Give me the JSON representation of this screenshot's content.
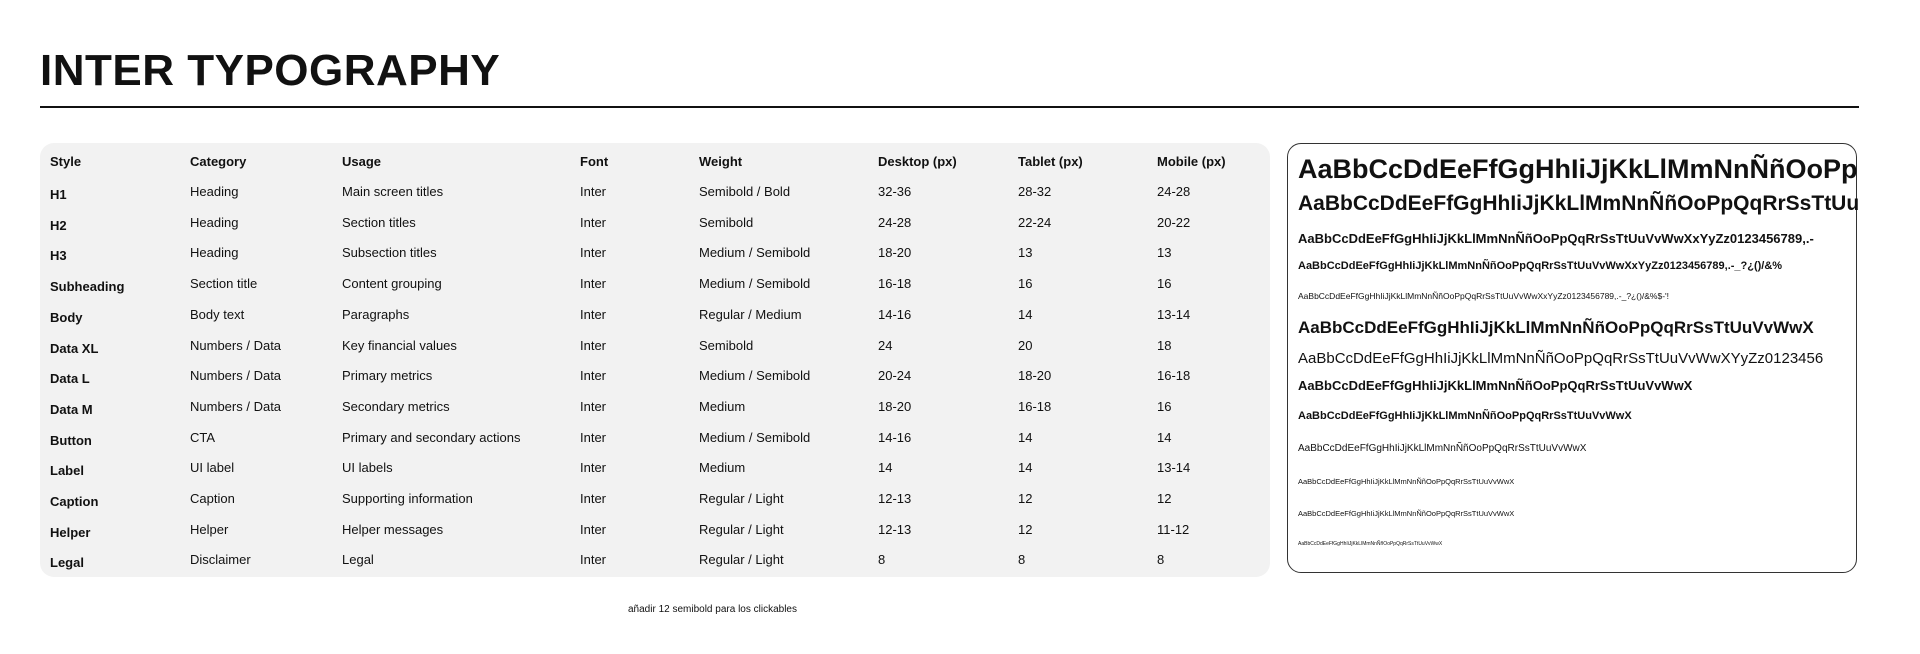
{
  "title": "INTER TYPOGRAPHY",
  "table": {
    "header": [
      "Style",
      "Category",
      "Usage",
      "Font",
      "Weight",
      "Desktop (px)",
      "Tablet (px)",
      "Mobile (px)"
    ],
    "rows": [
      [
        "H1",
        "Heading",
        "Main screen titles",
        "Inter",
        "Semibold / Bold",
        "32-36",
        "28-32",
        "24-28"
      ],
      [
        "H2",
        "Heading",
        "Section titles",
        "Inter",
        "Semibold",
        "24-28",
        "22-24",
        "20-22"
      ],
      [
        "H3",
        "Heading",
        "Subsection titles",
        "Inter",
        "Medium / Semibold",
        "18-20",
        "13",
        "13"
      ],
      [
        "Subheading",
        "Section title",
        "Content grouping",
        "Inter",
        "Medium / Semibold",
        "16-18",
        "16",
        "16"
      ],
      [
        "Body",
        "Body text",
        "Paragraphs",
        "Inter",
        "Regular / Medium",
        "14-16",
        "14",
        "13-14"
      ],
      [
        "Data XL",
        "Numbers / Data",
        "Key financial values",
        "Inter",
        "Semibold",
        "24",
        "20",
        "18"
      ],
      [
        "Data L",
        "Numbers / Data",
        "Primary metrics",
        "Inter",
        "Medium / Semibold",
        "20-24",
        "18-20",
        "16-18"
      ],
      [
        "Data M",
        "Numbers / Data",
        "Secondary metrics",
        "Inter",
        "Medium",
        "18-20",
        "16-18",
        "16"
      ],
      [
        "Button",
        "CTA",
        "Primary and secondary actions",
        "Inter",
        "Medium / Semibold",
        "14-16",
        "14",
        "14"
      ],
      [
        "Label",
        "UI label",
        "UI labels",
        "Inter",
        "Medium",
        "14",
        "14",
        "13-14"
      ],
      [
        "Caption",
        "Caption",
        "Supporting information",
        "Inter",
        "Regular / Light",
        "12-13",
        "12",
        "12"
      ],
      [
        "Helper",
        "Helper",
        "Helper messages",
        "Inter",
        "Regular / Light",
        "12-13",
        "12",
        "11-12"
      ],
      [
        "Legal",
        "Disclaimer",
        "Legal",
        "Inter",
        "Regular / Light",
        "8",
        "8",
        "8"
      ]
    ]
  },
  "specimens": [
    "AaBbCcDdEeFfGgHhIiJjKkLlMmNnÑñOoPp",
    "AaBbCcDdEeFfGgHhIiJjKkLlMmNnÑñOoPpQqRrSsTtUu",
    "AaBbCcDdEeFfGgHhIiJjKkLlMmNnÑñOoPpQqRrSsTtUuVvWwXxYyZz0123456789,.-",
    "AaBbCcDdEeFfGgHhIiJjKkLlMmNnÑñOoPpQqRrSsTtUuVvWwXxYyZz0123456789,.-_?¿()/&%",
    "AaBbCcDdEeFfGgHhIiJjKkLlMmNnÑñOoPpQqRrSsTtUuVvWwXxYyZz0123456789,.-_?¿()/&%$-'!",
    "AaBbCcDdEeFfGgHhIiJjKkLlMmNnÑñOoPpQqRrSsTtUuVvWwX",
    "AaBbCcDdEeFfGgHhIiJjKkLlMmNnÑñOoPpQqRrSsTtUuVvWwXYyZz0123456",
    "AaBbCcDdEeFfGgHhIiJjKkLlMmNnÑñOoPpQqRrSsTtUuVvWwX",
    "AaBbCcDdEeFfGgHhIiJjKkLlMmNnÑñOoPpQqRrSsTtUuVvWwX",
    "AaBbCcDdEeFfGgHhIiJjKkLlMmNnÑñOoPpQqRrSsTtUuVvWwX",
    "AaBbCcDdEeFfGgHhIiJjKkLlMmNnÑñOoPpQqRrSsTtUuVvWwX",
    "AaBbCcDdEeFfGgHhIiJjKkLlMmNnÑñOoPpQqRrSsTtUuVvWwX",
    "AaBbCcDdEeFfGgHhIiJjKkLlMmNnÑñOoPpQqRrSsTtUuVvWwX"
  ],
  "note": "añadir 12 semibold para los clickables"
}
